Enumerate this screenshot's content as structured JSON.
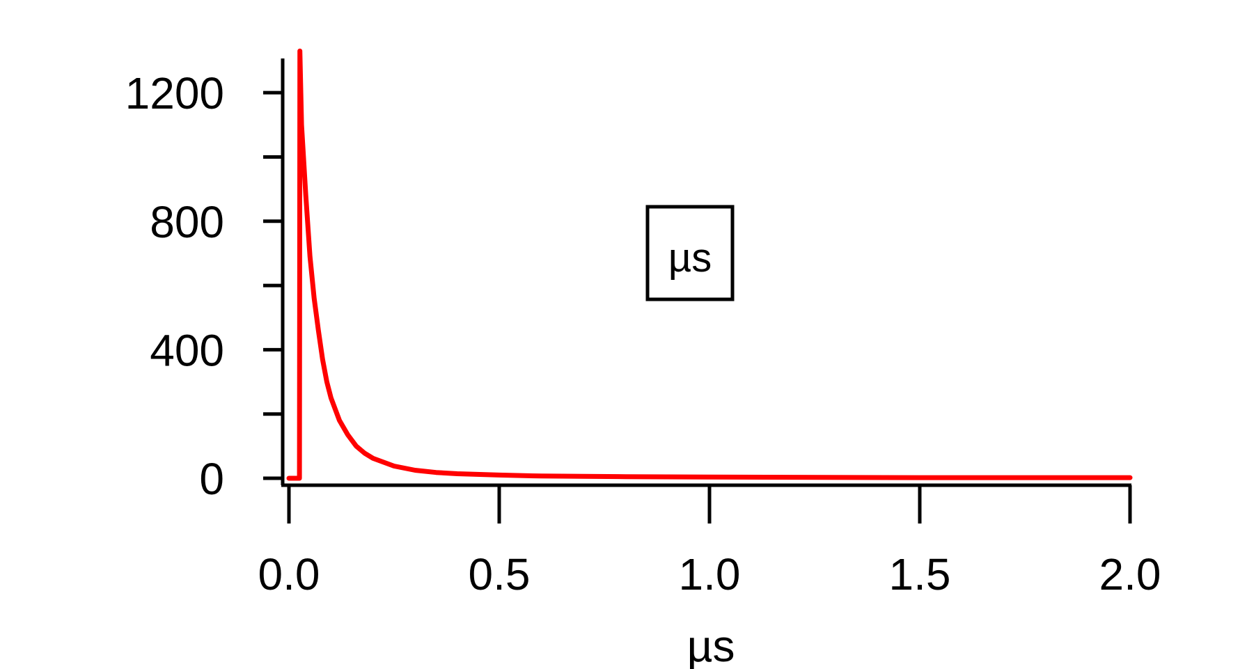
{
  "chart_data": {
    "type": "line",
    "title": "",
    "xlabel": "µs",
    "ylabel": "",
    "xlim": [
      0.0,
      2.0
    ],
    "ylim": [
      0,
      1300
    ],
    "x_ticks": [
      {
        "value": 0.0,
        "label": "0.0"
      },
      {
        "value": 0.5,
        "label": "0.5"
      },
      {
        "value": 1.0,
        "label": "1.0"
      },
      {
        "value": 1.5,
        "label": "1.5"
      },
      {
        "value": 2.0,
        "label": "2.0"
      }
    ],
    "y_ticks": [
      {
        "value": 0,
        "label": "0"
      },
      {
        "value": 400,
        "label": "400"
      },
      {
        "value": 800,
        "label": "800"
      },
      {
        "value": 1200,
        "label": "1200"
      }
    ],
    "y_minor_ticks": [
      200,
      600,
      1000
    ],
    "legend": {
      "text": "µs",
      "position": "center-right"
    },
    "grid": false,
    "series": [
      {
        "color": "#ff0000",
        "x": [
          0.0,
          0.02,
          0.025,
          0.026,
          0.03,
          0.04,
          0.05,
          0.06,
          0.07,
          0.08,
          0.09,
          0.1,
          0.12,
          0.14,
          0.16,
          0.18,
          0.2,
          0.25,
          0.3,
          0.35,
          0.4,
          0.5,
          0.6,
          0.7,
          0.8,
          1.0,
          1.2,
          1.5,
          2.0
        ],
        "y": [
          0,
          0,
          0,
          1330,
          1100,
          880,
          690,
          560,
          460,
          370,
          300,
          250,
          180,
          135,
          100,
          78,
          62,
          38,
          25,
          18,
          14,
          10,
          7,
          6,
          5,
          4,
          3,
          2,
          2
        ]
      }
    ]
  }
}
